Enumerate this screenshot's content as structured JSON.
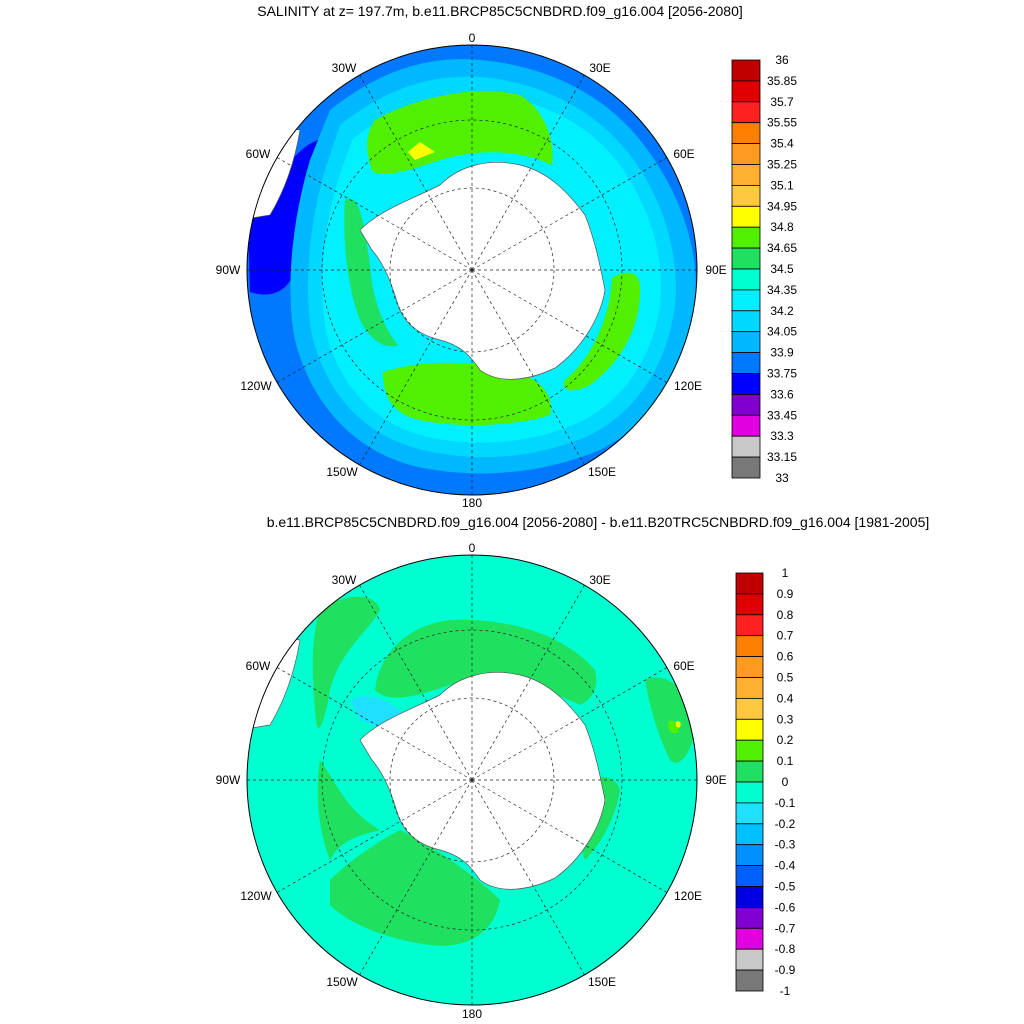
{
  "panels": [
    {
      "title": "SALINITY at z= 197.7m, b.e11.BRCP85C5CNBDRD.f09_g16.004 [2056-2080]",
      "lon_labels": [
        "0",
        "30E",
        "60E",
        "90E",
        "120E",
        "150E",
        "180",
        "150W",
        "120W",
        "90W",
        "60W",
        "30W"
      ],
      "colorbar": {
        "labels": [
          "36",
          "35.85",
          "35.7",
          "35.55",
          "35.4",
          "35.25",
          "35.1",
          "34.95",
          "34.8",
          "34.65",
          "34.5",
          "34.35",
          "34.2",
          "34.05",
          "33.9",
          "33.75",
          "33.6",
          "33.45",
          "33.3",
          "33.15",
          "33"
        ],
        "colors_top_to_bottom": [
          "#c00000",
          "#e00000",
          "#ff2020",
          "#ff8000",
          "#ff9a20",
          "#ffb030",
          "#ffc840",
          "#ffff00",
          "#50f000",
          "#20e060",
          "#00ffd0",
          "#00f0ff",
          "#00d8ff",
          "#00b8ff",
          "#0078ff",
          "#0000ff",
          "#8000d0",
          "#e000e0",
          "#c8c8c8",
          "#787878"
        ]
      }
    },
    {
      "title": "b.e11.BRCP85C5CNBDRD.f09_g16.004 [2056-2080] - b.e11.B20TRC5CNBDRD.f09_g16.004 [1981-2005]",
      "lon_labels": [
        "0",
        "30E",
        "60E",
        "90E",
        "120E",
        "150E",
        "180",
        "150W",
        "120W",
        "90W",
        "60W",
        "30W"
      ],
      "colorbar": {
        "labels": [
          "1",
          "0.9",
          "0.8",
          "0.7",
          "0.6",
          "0.5",
          "0.4",
          "0.3",
          "0.2",
          "0.1",
          "0",
          "-0.1",
          "-0.2",
          "-0.3",
          "-0.4",
          "-0.5",
          "-0.6",
          "-0.7",
          "-0.8",
          "-0.9",
          "-1"
        ],
        "colors_top_to_bottom": [
          "#c00000",
          "#e00000",
          "#ff2020",
          "#ff8000",
          "#ff9a20",
          "#ffb030",
          "#ffc840",
          "#ffff00",
          "#50f000",
          "#20e060",
          "#00ffd0",
          "#20e0ff",
          "#00c0ff",
          "#0090ff",
          "#0060ff",
          "#0000e0",
          "#8000d0",
          "#e000e0",
          "#c8c8c8",
          "#787878"
        ]
      }
    }
  ]
}
